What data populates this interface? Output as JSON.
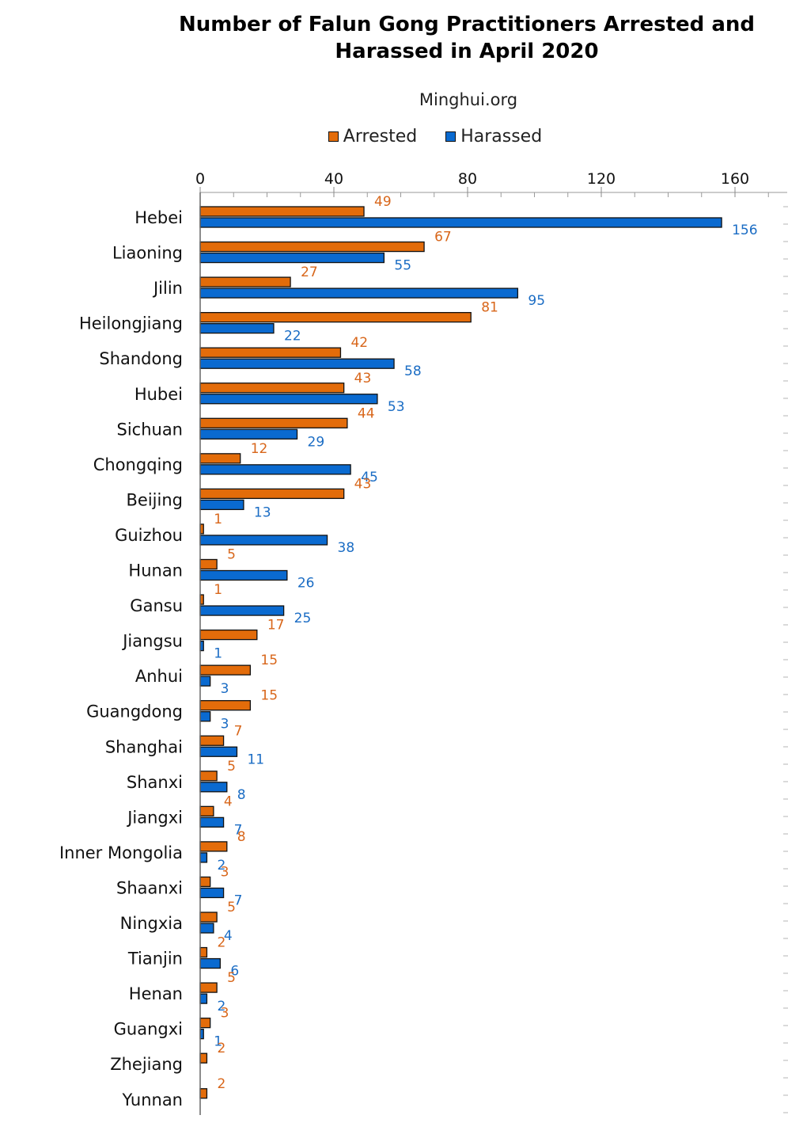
{
  "chart_data": {
    "type": "bar",
    "orientation": "horizontal",
    "title_lines": [
      "Number of Falun Gong Practitioners Arrested and",
      "Harassed in April 2020"
    ],
    "subtitle": "Minghui.org",
    "xlim": [
      0,
      160
    ],
    "x_ticks": [
      0,
      40,
      80,
      120,
      160
    ],
    "legend_position": "top",
    "categories": [
      "Hebei",
      "Liaoning",
      "Jilin",
      "Heilongjiang",
      "Shandong",
      "Hubei",
      "Sichuan",
      "Chongqing",
      "Beijing",
      "Guizhou",
      "Hunan",
      "Gansu",
      "Jiangsu",
      "Anhui",
      "Guangdong",
      "Shanghai",
      "Shanxi",
      "Jiangxi",
      "Inner Mongolia",
      "Shaanxi",
      "Ningxia",
      "Tianjin",
      "Henan",
      "Guangxi",
      "Zhejiang",
      "Yunnan"
    ],
    "series": [
      {
        "name": "Arrested",
        "color": "#E36C0A",
        "label_color": "#D8661A",
        "values": [
          49,
          67,
          27,
          81,
          42,
          43,
          44,
          12,
          43,
          1,
          5,
          1,
          17,
          15,
          15,
          7,
          5,
          4,
          8,
          3,
          5,
          2,
          5,
          3,
          2,
          2
        ]
      },
      {
        "name": "Harassed",
        "color": "#0A6AD0",
        "label_color": "#1A6CC4",
        "values": [
          156,
          55,
          95,
          22,
          58,
          53,
          29,
          45,
          13,
          38,
          26,
          25,
          1,
          3,
          3,
          11,
          8,
          7,
          2,
          7,
          4,
          6,
          2,
          1,
          null,
          null
        ]
      }
    ]
  }
}
